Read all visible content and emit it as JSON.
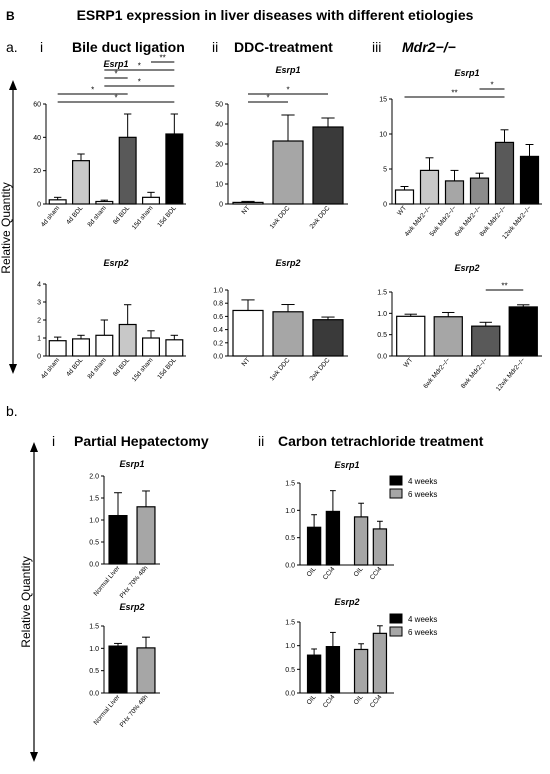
{
  "figure": {
    "letter": "B",
    "title": "ESRP1 expression in liver diseases with different etiologies",
    "y_axis_label": "Relative Quantity"
  },
  "section_a": {
    "label": "a.",
    "panels": [
      {
        "numeral": "i",
        "heading": "Bile duct ligation"
      },
      {
        "numeral": "ii",
        "heading": "DDC-treatment"
      },
      {
        "numeral": "iii",
        "heading": "Mdr2−/−"
      }
    ]
  },
  "section_b": {
    "label": "b.",
    "panels": [
      {
        "numeral": "i",
        "heading": "Partial Hepatectomy"
      },
      {
        "numeral": "ii",
        "heading": "Carbon tetrachloride treatment"
      }
    ]
  },
  "colors": {
    "white": "#ffffff",
    "light_gray": "#c8c8c8",
    "medium_gray": "#a6a6a6",
    "dark_gray": "#595959",
    "charcoal": "#3a3a3a",
    "black": "#000000"
  },
  "chart_data": [
    {
      "id": "bdl_esrp1",
      "type": "bar",
      "title": "Esrp1",
      "ylim": [
        0,
        60
      ],
      "yticks": [
        "0",
        "20",
        "40",
        "60"
      ],
      "categories": [
        "4d sham",
        "4d BDL",
        "8d sham",
        "8d BDL",
        "15d sham",
        "15d BDL"
      ],
      "values": [
        2.5,
        26,
        1.5,
        40,
        4,
        42
      ],
      "errors": [
        1.5,
        4,
        0.8,
        14,
        3,
        12
      ],
      "fills": [
        "#ffffff",
        "#c8c8c8",
        "#ffffff",
        "#595959",
        "#ffffff",
        "#000000"
      ],
      "significance": [
        {
          "from": 0,
          "to": 5,
          "label": "*"
        },
        {
          "from": 0,
          "to": 3,
          "label": "*"
        },
        {
          "from": 2,
          "to": 5,
          "label": "*"
        },
        {
          "from": 2,
          "to": 3,
          "label": "*"
        },
        {
          "from": 2,
          "to": 5,
          "label": "*"
        },
        {
          "from": 4,
          "to": 5,
          "label": "**"
        }
      ]
    },
    {
      "id": "bdl_esrp2",
      "type": "bar",
      "title": "Esrp2",
      "ylim": [
        0,
        4
      ],
      "yticks": [
        "0",
        "1",
        "2",
        "3",
        "4"
      ],
      "categories": [
        "4d sham",
        "4d BDL",
        "8d sham",
        "8d BDL",
        "15d sham",
        "15d BDL"
      ],
      "values": [
        0.85,
        0.95,
        1.15,
        1.75,
        1.0,
        0.9
      ],
      "errors": [
        0.2,
        0.2,
        0.85,
        1.1,
        0.4,
        0.25
      ],
      "fills": [
        "#ffffff",
        "#ffffff",
        "#ffffff",
        "#c8c8c8",
        "#ffffff",
        "#ffffff"
      ],
      "significance": []
    },
    {
      "id": "ddc_esrp1",
      "type": "bar",
      "title": "Esrp1",
      "ylim": [
        0,
        50
      ],
      "yticks": [
        "0",
        "10",
        "20",
        "30",
        "40",
        "50"
      ],
      "categories": [
        "NT",
        "1wk DDC",
        "2wk DDC"
      ],
      "values": [
        0.8,
        31.5,
        38.5
      ],
      "errors": [
        0.5,
        13,
        4.5
      ],
      "fills": [
        "#ffffff",
        "#a6a6a6",
        "#3a3a3a"
      ],
      "significance": [
        {
          "from": 0,
          "to": 1,
          "label": "*"
        },
        {
          "from": 0,
          "to": 2,
          "label": "*"
        }
      ]
    },
    {
      "id": "ddc_esrp2",
      "type": "bar",
      "title": "Esrp2",
      "ylim": [
        0,
        1.0
      ],
      "yticks": [
        "0.0",
        "0.2",
        "0.4",
        "0.6",
        "0.8",
        "1.0"
      ],
      "categories": [
        "NT",
        "1wk DDC",
        "2wk DDC"
      ],
      "values": [
        0.69,
        0.67,
        0.55
      ],
      "errors": [
        0.16,
        0.11,
        0.04
      ],
      "fills": [
        "#ffffff",
        "#a6a6a6",
        "#3a3a3a"
      ],
      "significance": []
    },
    {
      "id": "mdr2_esrp1",
      "type": "bar",
      "title": "Esrp1",
      "ylim": [
        0,
        15
      ],
      "yticks": [
        "0",
        "5",
        "10",
        "15"
      ],
      "categories": [
        "WT",
        "4wk Mdr2−/−",
        "5wk Mdr2−/−",
        "6wk Mdr2−/−",
        "8wk Mdr2−/−",
        "12wk Mdr2−/−"
      ],
      "values": [
        2.0,
        4.8,
        3.3,
        3.7,
        8.8,
        6.8
      ],
      "errors": [
        0.5,
        1.8,
        1.5,
        0.7,
        1.8,
        1.7
      ],
      "fills": [
        "#ffffff",
        "#c8c8c8",
        "#a6a6a6",
        "#8c8c8c",
        "#595959",
        "#000000"
      ],
      "significance": [
        {
          "from": 0,
          "to": 4,
          "label": "**"
        },
        {
          "from": 3,
          "to": 4,
          "label": "*"
        }
      ]
    },
    {
      "id": "mdr2_esrp2",
      "type": "bar",
      "title": "Esrp2",
      "ylim": [
        0,
        1.5
      ],
      "yticks": [
        "0.0",
        "0.5",
        "1.0",
        "1.5"
      ],
      "categories": [
        "WT",
        "6wk Mdr2−/−",
        "8wk Mdr2−/−",
        "12wk Mdr2−/−"
      ],
      "values": [
        0.93,
        0.92,
        0.7,
        1.15
      ],
      "errors": [
        0.05,
        0.1,
        0.09,
        0.05
      ],
      "fills": [
        "#ffffff",
        "#a6a6a6",
        "#595959",
        "#000000"
      ],
      "significance": [
        {
          "from": 2,
          "to": 3,
          "label": "**"
        }
      ]
    },
    {
      "id": "phx_esrp1",
      "type": "bar",
      "title": "Esrp1",
      "ylim": [
        0,
        2.0
      ],
      "yticks": [
        "0.0",
        "0.5",
        "1.0",
        "1.5",
        "2.0"
      ],
      "categories": [
        "Normal Liver",
        "PHx 70% 48h"
      ],
      "values": [
        1.1,
        1.3
      ],
      "errors": [
        0.52,
        0.36
      ],
      "fills": [
        "#000000",
        "#a6a6a6"
      ],
      "significance": []
    },
    {
      "id": "phx_esrp2",
      "type": "bar",
      "title": "Esrp2",
      "ylim": [
        0,
        1.5
      ],
      "yticks": [
        "0.0",
        "0.5",
        "1.0",
        "1.5"
      ],
      "categories": [
        "Normal Liver",
        "PHx 70% 48h"
      ],
      "values": [
        1.05,
        1.01
      ],
      "errors": [
        0.06,
        0.24
      ],
      "fills": [
        "#000000",
        "#a6a6a6"
      ],
      "significance": []
    },
    {
      "id": "ccl4_esrp1",
      "type": "bar",
      "title": "Esrp1",
      "ylim": [
        0,
        1.5
      ],
      "yticks": [
        "0.0",
        "0.5",
        "1.0",
        "1.5"
      ],
      "categories": [
        "OIL",
        "CCl4",
        "OIL",
        "CCl4"
      ],
      "values": [
        0.69,
        0.98,
        0.88,
        0.66
      ],
      "errors": [
        0.23,
        0.38,
        0.25,
        0.14
      ],
      "fills": [
        "#000000",
        "#000000",
        "#a6a6a6",
        "#a6a6a6"
      ],
      "legend": [
        {
          "label": "4 weeks",
          "color": "#000000"
        },
        {
          "label": "6 weeks",
          "color": "#a6a6a6"
        }
      ],
      "significance": []
    },
    {
      "id": "ccl4_esrp2",
      "type": "bar",
      "title": "Esrp2",
      "ylim": [
        0,
        1.5
      ],
      "yticks": [
        "0.0",
        "0.5",
        "1.0",
        "1.5"
      ],
      "categories": [
        "OIL",
        "CCl4",
        "OIL",
        "CCl4"
      ],
      "values": [
        0.8,
        0.98,
        0.92,
        1.26
      ],
      "errors": [
        0.13,
        0.3,
        0.12,
        0.16
      ],
      "fills": [
        "#000000",
        "#000000",
        "#a6a6a6",
        "#a6a6a6"
      ],
      "legend": [
        {
          "label": "4 weeks",
          "color": "#000000"
        },
        {
          "label": "6 weeks",
          "color": "#a6a6a6"
        }
      ],
      "significance": []
    }
  ]
}
